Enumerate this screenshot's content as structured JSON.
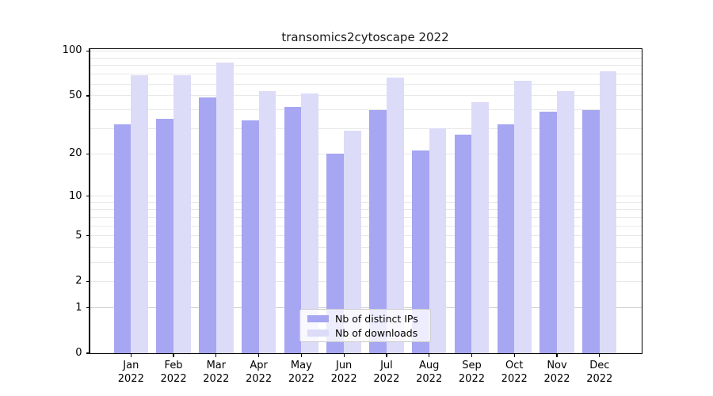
{
  "title": "transomics2cytoscape 2022",
  "colors": {
    "ips_bar": "#a6a6f2",
    "downloads_bar": "#dcdcf8",
    "grid_minor": "#e8e8e8",
    "grid_base": "#cfcfcf",
    "spine": "#000000"
  },
  "legend": {
    "items": [
      {
        "label": "Nb of distinct IPs",
        "color_key": "ips_bar"
      },
      {
        "label": "Nb of downloads",
        "color_key": "downloads_bar"
      }
    ]
  },
  "y_axis": {
    "tick_labels": [
      "100",
      "50",
      "20",
      "10",
      "5",
      "2",
      "1",
      "0"
    ],
    "tick_values": [
      100,
      50,
      20,
      10,
      5,
      2,
      1,
      0
    ],
    "gridline_values": [
      1,
      2,
      3,
      4,
      5,
      6,
      7,
      8,
      9,
      10,
      20,
      30,
      40,
      50,
      60,
      70,
      80,
      90,
      100
    ]
  },
  "x_axis": {
    "months": [
      "Jan",
      "Feb",
      "Mar",
      "Apr",
      "May",
      "Jun",
      "Jul",
      "Aug",
      "Sep",
      "Oct",
      "Nov",
      "Dec"
    ],
    "year": "2022"
  },
  "chart_data": {
    "type": "bar",
    "title": "transomics2cytoscape 2022",
    "categories": [
      "Jan 2022",
      "Feb 2022",
      "Mar 2022",
      "Apr 2022",
      "May 2022",
      "Jun 2022",
      "Jul 2022",
      "Aug 2022",
      "Sep 2022",
      "Oct 2022",
      "Nov 2022",
      "Dec 2022"
    ],
    "series": [
      {
        "name": "Nb of distinct IPs",
        "values": [
          32,
          35,
          49,
          34,
          42,
          20,
          40,
          21,
          27,
          32,
          39,
          40
        ]
      },
      {
        "name": "Nb of downloads",
        "values": [
          69,
          69,
          84,
          54,
          52,
          29,
          66,
          30,
          45,
          63,
          54,
          73
        ]
      }
    ],
    "xlabel": "",
    "ylabel": "",
    "yscale": "log1p",
    "ylim": [
      0,
      103
    ],
    "grid": true,
    "legend_position": "lower center"
  }
}
